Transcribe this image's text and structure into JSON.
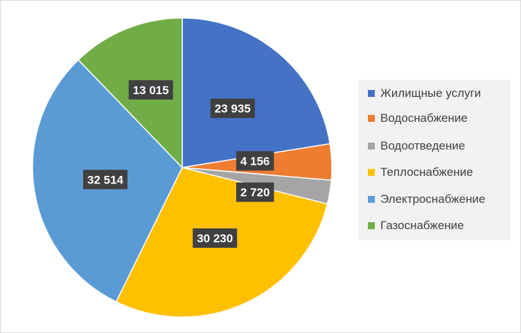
{
  "chart_data": {
    "type": "pie",
    "categories": [
      "Жилищные услуги",
      "Водоснабжение",
      "Водоотведение",
      "Теплоснабжение",
      "Электроснабжение",
      "Газоснабжение"
    ],
    "values": [
      23935,
      4156,
      2720,
      30230,
      32514,
      13015
    ],
    "value_labels": [
      "23 935",
      "4 156",
      "2 720",
      "30 230",
      "32 514",
      "13 015"
    ],
    "colors": [
      "#4472c4",
      "#ed7d31",
      "#a5a5a5",
      "#ffc000",
      "#5b9bd5",
      "#70ad47"
    ],
    "start_angle_deg": 0,
    "direction": "clockwise",
    "legend_position": "right",
    "title": ""
  }
}
